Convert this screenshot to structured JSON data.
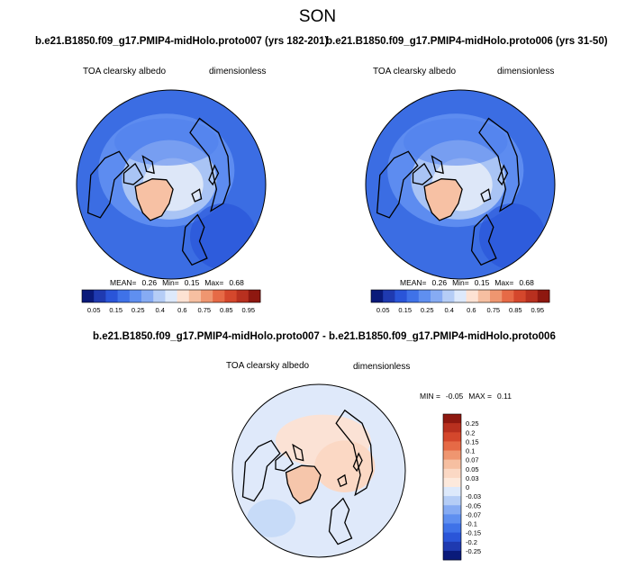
{
  "figure": {
    "season": "SON",
    "panel_left": {
      "title": "b.e21.B1850.f09_g17.PMIP4-midHolo.proto007 (yrs 182-201)",
      "variable": "TOA clearsky albedo",
      "units": "dimensionless",
      "mean_label": "MEAN=",
      "mean": "0.26",
      "min_label": "Min=",
      "min": "0.15",
      "max_label": "Max=",
      "max": "0.68"
    },
    "panel_right": {
      "title": "b.e21.B1850.f09_g17.PMIP4-midHolo.proto006 (yrs 31-50)",
      "variable": "TOA clearsky albedo",
      "units": "dimensionless",
      "mean_label": "MEAN=",
      "mean": "0.26",
      "min_label": "Min=",
      "min": "0.15",
      "max_label": "Max=",
      "max": "0.68"
    },
    "panel_diff": {
      "title": "b.e21.B1850.f09_g17.PMIP4-midHolo.proto007 - b.e21.B1850.f09_g17.PMIP4-midHolo.proto006",
      "variable": "TOA clearsky albedo",
      "units": "dimensionless",
      "min_label": "MIN =",
      "min": "-0.05",
      "max_label": "MAX =",
      "max": "0.11"
    }
  },
  "chart_data": [
    {
      "type": "heatmap",
      "projection": "north polar stereographic",
      "title": "b.e21.B1850.f09_g17.PMIP4-midHolo.proto007 (yrs 182-201)",
      "variable": "TOA clearsky albedo",
      "units": "dimensionless",
      "mean": 0.26,
      "min": 0.15,
      "max": 0.68,
      "colorbar": {
        "orientation": "horizontal",
        "tick_labels": [
          "0.05",
          "0.15",
          "0.25",
          "0.4",
          "0.6",
          "0.75",
          "0.85",
          "0.95"
        ],
        "colors": [
          "#0a1a7a",
          "#1f3ab0",
          "#2a55d8",
          "#3f72e8",
          "#5f8ff0",
          "#86abf3",
          "#b5cdf6",
          "#dde9fb",
          "#fde2d3",
          "#f6bfa1",
          "#ef9670",
          "#e66a46",
          "#d4472c",
          "#b8301f",
          "#8e1810"
        ]
      }
    },
    {
      "type": "heatmap",
      "projection": "north polar stereographic",
      "title": "b.e21.B1850.f09_g17.PMIP4-midHolo.proto006 (yrs 31-50)",
      "variable": "TOA clearsky albedo",
      "units": "dimensionless",
      "mean": 0.26,
      "min": 0.15,
      "max": 0.68,
      "colorbar": {
        "orientation": "horizontal",
        "tick_labels": [
          "0.05",
          "0.15",
          "0.25",
          "0.4",
          "0.6",
          "0.75",
          "0.85",
          "0.95"
        ],
        "colors": [
          "#0a1a7a",
          "#1f3ab0",
          "#2a55d8",
          "#3f72e8",
          "#5f8ff0",
          "#86abf3",
          "#b5cdf6",
          "#dde9fb",
          "#fde2d3",
          "#f6bfa1",
          "#ef9670",
          "#e66a46",
          "#d4472c",
          "#b8301f",
          "#8e1810"
        ]
      }
    },
    {
      "type": "heatmap",
      "projection": "north polar stereographic",
      "title": "b.e21.B1850.f09_g17.PMIP4-midHolo.proto007 - b.e21.B1850.f09_g17.PMIP4-midHolo.proto006",
      "variable": "TOA clearsky albedo",
      "units": "dimensionless",
      "min": -0.05,
      "max": 0.11,
      "colorbar": {
        "orientation": "vertical",
        "tick_labels": [
          "0.25",
          "0.2",
          "0.15",
          "0.1",
          "0.07",
          "0.05",
          "0.03",
          "0",
          "-0.03",
          "-0.05",
          "-0.07",
          "-0.1",
          "-0.15",
          "-0.2",
          "-0.25"
        ],
        "colors": [
          "#8e1810",
          "#b8301f",
          "#d4472c",
          "#e66a46",
          "#ef9670",
          "#f6bfa1",
          "#fbd8c4",
          "#fde9dc",
          "#dde9fb",
          "#b5cdf6",
          "#86abf3",
          "#5f8ff0",
          "#3f72e8",
          "#2a55d8",
          "#1f3ab0",
          "#0a1a7a"
        ]
      }
    }
  ]
}
